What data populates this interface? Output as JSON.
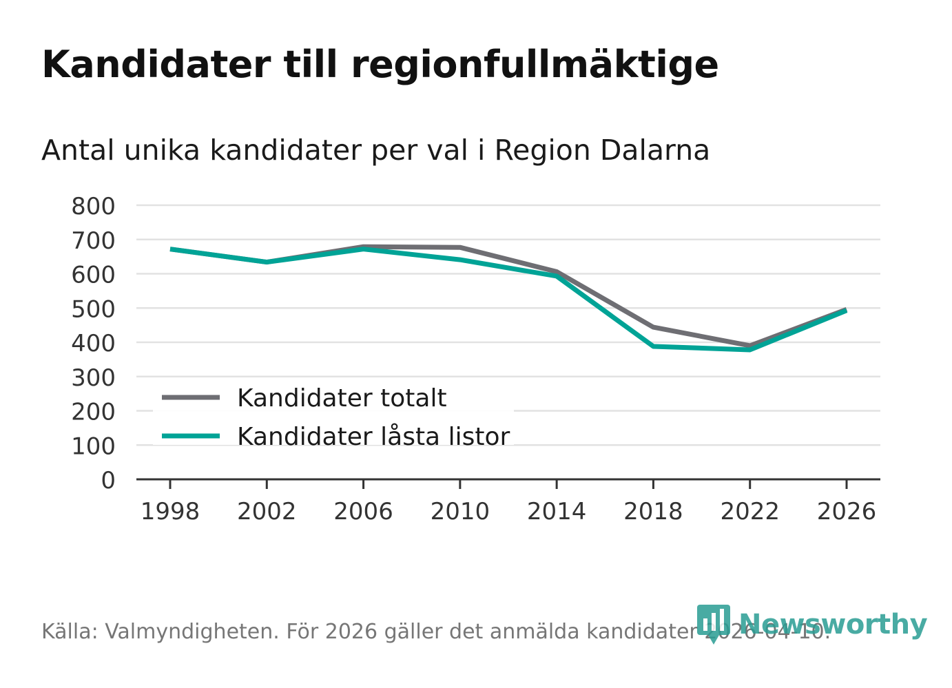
{
  "title": "Kandidater till regionfullmäktige",
  "subtitle": "Antal unika kandidater per val i Region Dalarna",
  "source": "Källa: Valmyndigheten. För 2026 gäller det anmälda kandidater 2026-04-10.",
  "logo": {
    "text": "Newsworthy",
    "icon": "newsworthy-bar-chart-icon",
    "color": "#2a9d94"
  },
  "colors": {
    "grid": "#e2e2e2",
    "axis": "#333333",
    "text": "#333333"
  },
  "chart_data": {
    "type": "line",
    "x": [
      1998,
      2002,
      2006,
      2010,
      2014,
      2018,
      2022,
      2026
    ],
    "xticks": [
      "1998",
      "2002",
      "2006",
      "2010",
      "2014",
      "2018",
      "2022",
      "2026"
    ],
    "yticks": [
      "0",
      "100",
      "200",
      "300",
      "400",
      "500",
      "600",
      "700",
      "800"
    ],
    "ylim": [
      0,
      800
    ],
    "grid": true,
    "legend_position": "bottom-left",
    "series": [
      {
        "name": "Kandidater totalt",
        "color": "#6e6e73",
        "values": [
          672,
          634,
          679,
          677,
          606,
          444,
          390,
          496
        ]
      },
      {
        "name": "Kandidater låsta listor",
        "color": "#00a396",
        "values": [
          672,
          634,
          672,
          641,
          593,
          388,
          378,
          493
        ]
      }
    ]
  }
}
